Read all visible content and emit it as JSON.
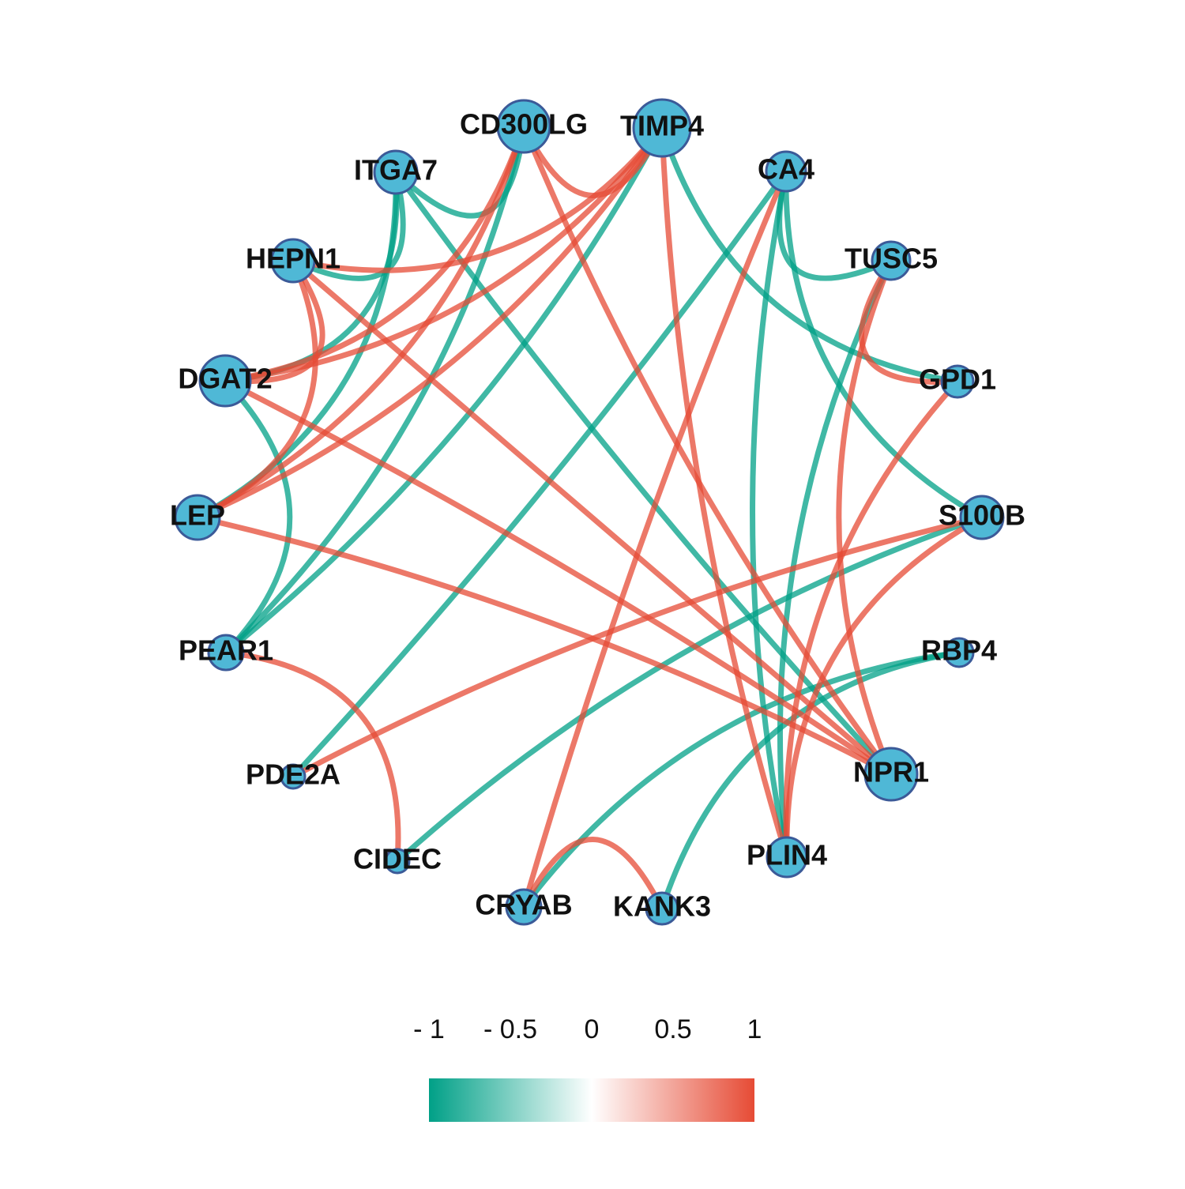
{
  "network": {
    "nodes": [
      "CD300LG",
      "TIMP4",
      "ITGA7",
      "CA4",
      "HEPN1",
      "TUSC5",
      "DGAT2",
      "GPD1",
      "LEP",
      "S100B",
      "PEAR1",
      "RBP4",
      "PDE2A",
      "NPR1",
      "CIDEC",
      "PLIN4",
      "CRYAB",
      "KANK3"
    ],
    "node_color": "#4FB8D6",
    "edges": [
      {
        "from": "ITGA7",
        "to": "CD300LG",
        "color": "#00A087"
      },
      {
        "from": "ITGA7",
        "to": "HEPN1",
        "color": "#00A087"
      },
      {
        "from": "ITGA7",
        "to": "LEP",
        "color": "#00A087"
      },
      {
        "from": "ITGA7",
        "to": "DGAT2",
        "color": "#00A087"
      },
      {
        "from": "ITGA7",
        "to": "NPR1",
        "color": "#00A087"
      },
      {
        "from": "CD300LG",
        "to": "PEAR1",
        "color": "#00A087"
      },
      {
        "from": "TIMP4",
        "to": "PEAR1",
        "color": "#00A087"
      },
      {
        "from": "TIMP4",
        "to": "GPD1",
        "color": "#00A087"
      },
      {
        "from": "CA4",
        "to": "TUSC5",
        "color": "#00A087"
      },
      {
        "from": "CA4",
        "to": "S100B",
        "color": "#00A087"
      },
      {
        "from": "CA4",
        "to": "PLIN4",
        "color": "#00A087"
      },
      {
        "from": "CA4",
        "to": "PDE2A",
        "color": "#00A087"
      },
      {
        "from": "DGAT2",
        "to": "PEAR1",
        "color": "#00A087"
      },
      {
        "from": "S100B",
        "to": "CIDEC",
        "color": "#00A087"
      },
      {
        "from": "RBP4",
        "to": "CRYAB",
        "color": "#00A087"
      },
      {
        "from": "RBP4",
        "to": "KANK3",
        "color": "#00A087"
      },
      {
        "from": "TUSC5",
        "to": "PLIN4",
        "color": "#00A087"
      },
      {
        "from": "CD300LG",
        "to": "TIMP4",
        "color": "#E64B35"
      },
      {
        "from": "CD300LG",
        "to": "DGAT2",
        "color": "#E64B35"
      },
      {
        "from": "CD300LG",
        "to": "LEP",
        "color": "#E64B35"
      },
      {
        "from": "CD300LG",
        "to": "NPR1",
        "color": "#E64B35"
      },
      {
        "from": "TIMP4",
        "to": "DGAT2",
        "color": "#E64B35"
      },
      {
        "from": "TIMP4",
        "to": "LEP",
        "color": "#E64B35"
      },
      {
        "from": "TIMP4",
        "to": "HEPN1",
        "color": "#E64B35"
      },
      {
        "from": "TIMP4",
        "to": "PLIN4",
        "color": "#E64B35"
      },
      {
        "from": "HEPN1",
        "to": "DGAT2",
        "color": "#E64B35"
      },
      {
        "from": "HEPN1",
        "to": "LEP",
        "color": "#E64B35"
      },
      {
        "from": "HEPN1",
        "to": "NPR1",
        "color": "#E64B35"
      },
      {
        "from": "DGAT2",
        "to": "NPR1",
        "color": "#E64B35"
      },
      {
        "from": "LEP",
        "to": "NPR1",
        "color": "#E64B35"
      },
      {
        "from": "PEAR1",
        "to": "CIDEC",
        "color": "#E64B35"
      },
      {
        "from": "CA4",
        "to": "CRYAB",
        "color": "#E64B35"
      },
      {
        "from": "TUSC5",
        "to": "GPD1",
        "color": "#E64B35"
      },
      {
        "from": "TUSC5",
        "to": "NPR1",
        "color": "#E64B35"
      },
      {
        "from": "GPD1",
        "to": "PLIN4",
        "color": "#E64B35"
      },
      {
        "from": "S100B",
        "to": "PDE2A",
        "color": "#E64B35"
      },
      {
        "from": "S100B",
        "to": "PLIN4",
        "color": "#E64B35"
      },
      {
        "from": "CRYAB",
        "to": "KANK3",
        "color": "#E64B35"
      }
    ]
  },
  "legend": {
    "lim": [
      -1,
      1
    ],
    "ticks": [
      {
        "value": -1,
        "label": "- 1"
      },
      {
        "value": -0.5,
        "label": "- 0.5"
      },
      0,
      0.5,
      1
    ],
    "colors": [
      "#00A087",
      "#FFFFFF",
      "#E64B35"
    ]
  }
}
